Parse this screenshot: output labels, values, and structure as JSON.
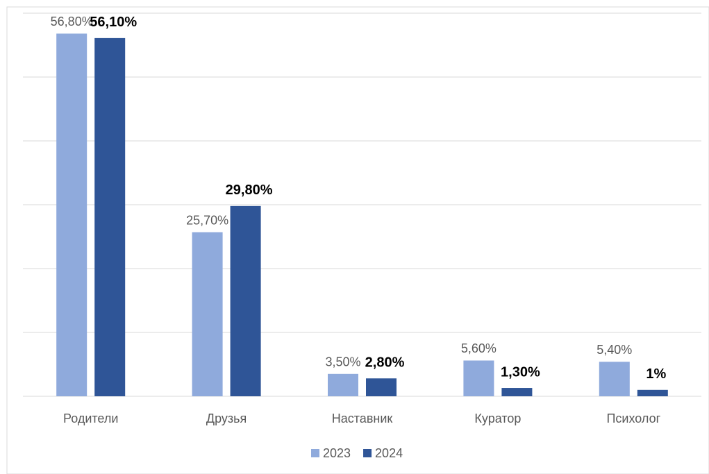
{
  "chart_data": {
    "type": "bar",
    "categories": [
      "Родители",
      "Друзья",
      "Наставник",
      "Куратор",
      "Психолог"
    ],
    "series": [
      {
        "name": "2023",
        "color": "#8faadc",
        "values": [
          56.8,
          25.7,
          3.5,
          5.6,
          5.4
        ],
        "value_labels": [
          "56,80%",
          "25,70%",
          "3,50%",
          "5,60%",
          "5,40%"
        ]
      },
      {
        "name": "2024",
        "color": "#2f5597",
        "values": [
          56.1,
          29.8,
          2.8,
          1.3,
          1
        ],
        "value_labels": [
          "56,10%",
          "29,80%",
          "2,80%",
          "1,30%",
          "1%"
        ]
      }
    ],
    "ylim": [
      0,
      60
    ],
    "yticks": [
      0,
      10,
      20,
      30,
      40,
      50,
      60
    ],
    "grid": true,
    "legend": "bottom"
  }
}
